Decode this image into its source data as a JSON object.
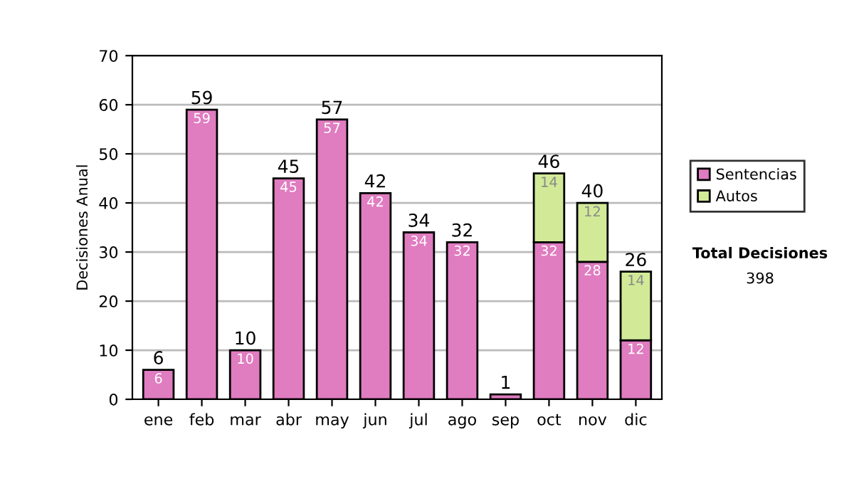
{
  "chart_data": {
    "type": "bar",
    "stacked": true,
    "ylabel": "Decisiones Anual",
    "categories": [
      "ene",
      "feb",
      "mar",
      "abr",
      "may",
      "jun",
      "jul",
      "ago",
      "sep",
      "oct",
      "nov",
      "dic"
    ],
    "series": [
      {
        "name": "Sentencias",
        "color": "#e07cc0",
        "values": [
          6,
          59,
          10,
          45,
          57,
          42,
          34,
          32,
          1,
          32,
          28,
          12
        ],
        "value_labels": [
          "6",
          "59",
          "10",
          "45",
          "57",
          "42",
          "34",
          "32",
          null,
          "32",
          "28",
          "12"
        ]
      },
      {
        "name": "Autos",
        "color": "#d2ea98",
        "values": [
          null,
          null,
          null,
          null,
          null,
          null,
          null,
          null,
          null,
          14,
          12,
          14
        ],
        "value_labels": [
          null,
          null,
          null,
          null,
          null,
          null,
          null,
          null,
          null,
          "14",
          "12",
          "14"
        ]
      }
    ],
    "totals": [
      "6",
      "59",
      "10",
      "45",
      "57",
      "42",
      "34",
      "32",
      "1",
      "46",
      "40",
      "26"
    ],
    "ylim": [
      0,
      70
    ],
    "yticks": [
      0,
      10,
      20,
      30,
      40,
      50,
      60,
      70
    ],
    "grid": "y",
    "legend": "right",
    "annotations": [
      "Total Decisiones",
      "398"
    ]
  }
}
